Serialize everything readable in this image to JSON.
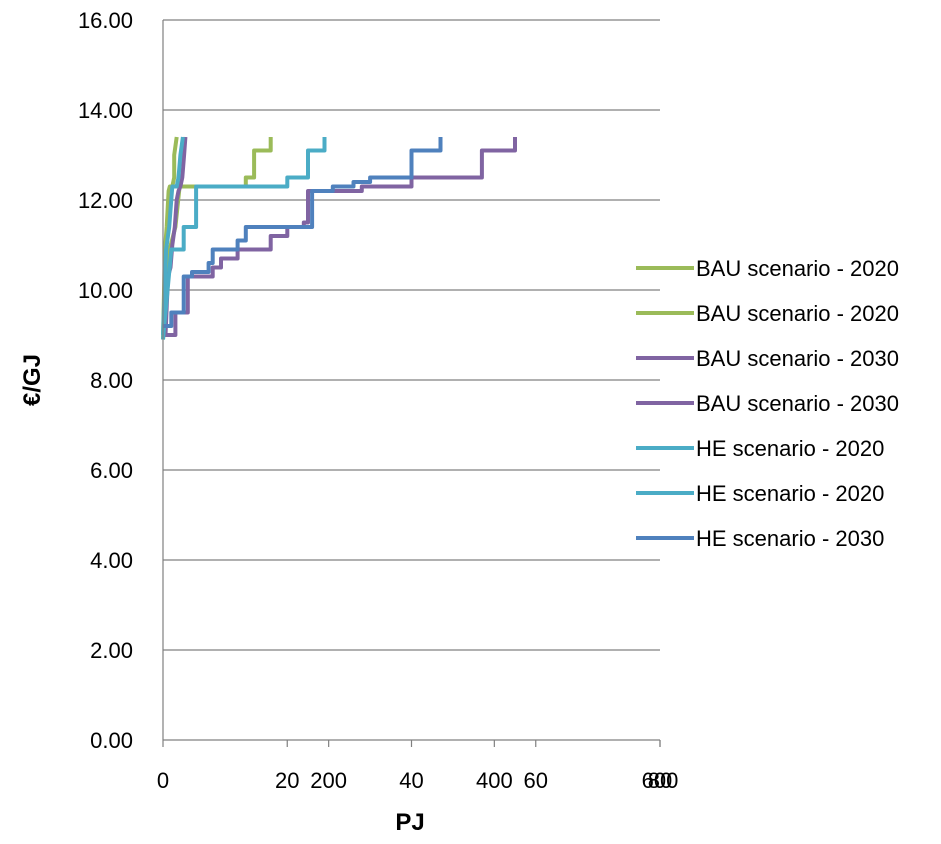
{
  "chart_data": {
    "type": "line",
    "title": "",
    "xlabel": "PJ",
    "ylabel": "€/GJ",
    "ylim": [
      0,
      16
    ],
    "y_ticks": [
      "0.00",
      "2.00",
      "4.00",
      "6.00",
      "8.00",
      "10.00",
      "12.00",
      "14.00",
      "16.00"
    ],
    "x_axes": [
      {
        "name": "primary",
        "xlim": [
          0,
          80
        ],
        "ticks": [
          "0",
          "20",
          "40",
          "60",
          "80"
        ]
      },
      {
        "name": "secondary",
        "xlim": [
          0,
          600
        ],
        "ticks": [
          "200",
          "400",
          "600"
        ]
      }
    ],
    "grid": "horizontal",
    "legend_position": "right",
    "series": [
      {
        "name": "BAU scenario - 2020",
        "color": "#9bbb59",
        "x_axis": "primary",
        "points": [
          [
            0,
            8.9
          ],
          [
            0.3,
            10.9
          ],
          [
            0.6,
            11.4
          ],
          [
            0.9,
            12.2
          ],
          [
            1.1,
            12.3
          ],
          [
            1.5,
            12.3
          ],
          [
            1.8,
            12.5
          ],
          [
            1.8,
            13.0
          ],
          [
            2.2,
            13.4
          ]
        ]
      },
      {
        "name": "BAU scenario - 2020",
        "color": "#9bbb59",
        "x_axis": "secondary",
        "points": [
          [
            0,
            8.9
          ],
          [
            8,
            10.9
          ],
          [
            15,
            11.4
          ],
          [
            20,
            12.3
          ],
          [
            100,
            12.3
          ],
          [
            100,
            12.5
          ],
          [
            110,
            12.5
          ],
          [
            110,
            13.1
          ],
          [
            130,
            13.1
          ],
          [
            130,
            13.4
          ]
        ]
      },
      {
        "name": "BAU scenario - 2030",
        "color": "#8064a2",
        "x_axis": "primary",
        "points": [
          [
            0,
            9.0
          ],
          [
            0.4,
            9.0
          ],
          [
            0.8,
            10.3
          ],
          [
            1.2,
            10.5
          ],
          [
            1.5,
            11.0
          ],
          [
            1.9,
            11.4
          ],
          [
            2.2,
            12.0
          ],
          [
            2.5,
            12.2
          ],
          [
            2.8,
            12.3
          ],
          [
            3.1,
            12.5
          ],
          [
            3.4,
            13.0
          ],
          [
            3.6,
            13.4
          ]
        ]
      },
      {
        "name": "BAU scenario - 2030",
        "color": "#8064a2",
        "x_axis": "secondary",
        "points": [
          [
            0,
            9.0
          ],
          [
            15,
            9.0
          ],
          [
            15,
            9.5
          ],
          [
            30,
            9.5
          ],
          [
            30,
            10.3
          ],
          [
            60,
            10.3
          ],
          [
            60,
            10.5
          ],
          [
            70,
            10.5
          ],
          [
            70,
            10.7
          ],
          [
            90,
            10.7
          ],
          [
            90,
            10.9
          ],
          [
            130,
            10.9
          ],
          [
            130,
            11.2
          ],
          [
            150,
            11.2
          ],
          [
            150,
            11.4
          ],
          [
            170,
            11.4
          ],
          [
            170,
            11.5
          ],
          [
            175,
            11.5
          ],
          [
            175,
            12.2
          ],
          [
            240,
            12.2
          ],
          [
            240,
            12.3
          ],
          [
            300,
            12.3
          ],
          [
            300,
            12.5
          ],
          [
            310,
            12.5
          ],
          [
            310,
            12.5
          ],
          [
            385,
            12.5
          ],
          [
            385,
            13.1
          ],
          [
            425,
            13.1
          ],
          [
            425,
            13.4
          ]
        ]
      },
      {
        "name": "HE scenario - 2020",
        "color": "#4bacc6",
        "x_axis": "primary",
        "points": [
          [
            0,
            9.0
          ],
          [
            0.5,
            10.9
          ],
          [
            1.0,
            11.4
          ],
          [
            1.5,
            12.3
          ],
          [
            2.2,
            12.3
          ],
          [
            2.5,
            12.5
          ],
          [
            2.8,
            13.0
          ],
          [
            3.2,
            13.4
          ]
        ]
      },
      {
        "name": "HE scenario - 2020",
        "color": "#4bacc6",
        "x_axis": "secondary",
        "points": [
          [
            0,
            8.9
          ],
          [
            10,
            10.9
          ],
          [
            25,
            10.9
          ],
          [
            25,
            11.4
          ],
          [
            40,
            11.4
          ],
          [
            40,
            12.3
          ],
          [
            150,
            12.3
          ],
          [
            150,
            12.5
          ],
          [
            175,
            12.5
          ],
          [
            175,
            13.1
          ],
          [
            195,
            13.1
          ],
          [
            195,
            13.4
          ]
        ]
      },
      {
        "name": "HE scenario - 2030",
        "color": "#4f81bd",
        "x_axis": "secondary",
        "points": [
          [
            0,
            9.2
          ],
          [
            10,
            9.2
          ],
          [
            10,
            9.5
          ],
          [
            25,
            9.5
          ],
          [
            25,
            10.3
          ],
          [
            35,
            10.3
          ],
          [
            35,
            10.4
          ],
          [
            55,
            10.4
          ],
          [
            55,
            10.6
          ],
          [
            60,
            10.6
          ],
          [
            60,
            10.9
          ],
          [
            90,
            10.9
          ],
          [
            90,
            11.1
          ],
          [
            100,
            11.1
          ],
          [
            100,
            11.4
          ],
          [
            180,
            11.4
          ],
          [
            180,
            12.2
          ],
          [
            205,
            12.2
          ],
          [
            205,
            12.3
          ],
          [
            230,
            12.3
          ],
          [
            230,
            12.4
          ],
          [
            250,
            12.4
          ],
          [
            250,
            12.5
          ],
          [
            300,
            12.5
          ],
          [
            300,
            13.1
          ],
          [
            335,
            13.1
          ],
          [
            335,
            13.4
          ]
        ]
      }
    ]
  }
}
